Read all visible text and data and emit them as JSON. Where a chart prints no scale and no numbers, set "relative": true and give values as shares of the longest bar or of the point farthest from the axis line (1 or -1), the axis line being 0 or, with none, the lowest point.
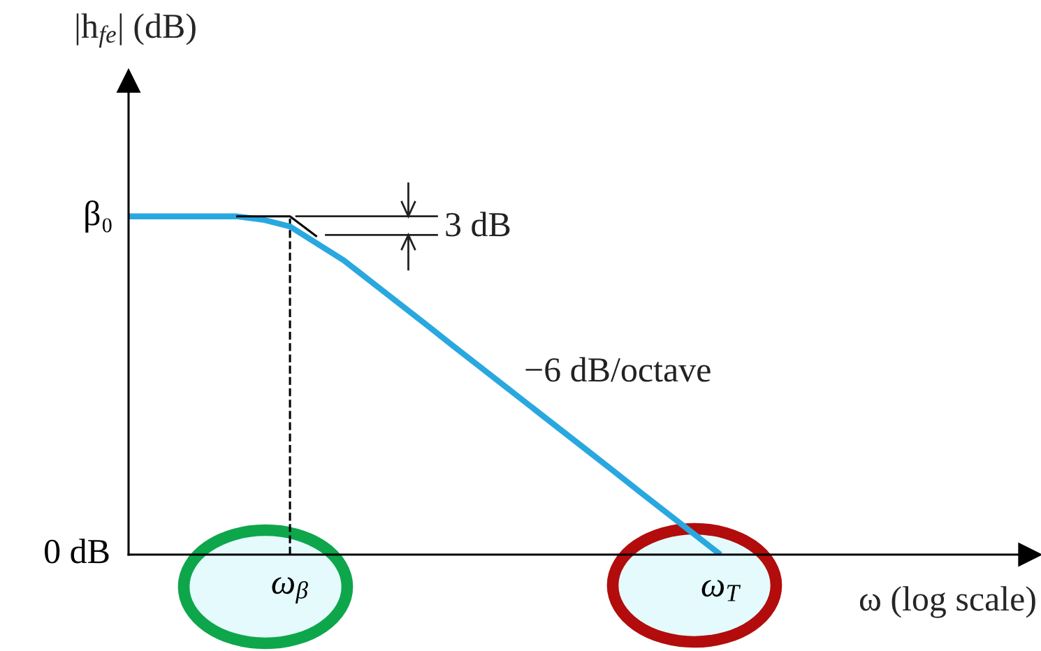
{
  "chart_data": {
    "type": "line",
    "relative": true,
    "xlabel": "ω (log scale)",
    "ylabel": "|h$_{fe}$| (dB)",
    "categories": [
      null,
      null,
      null,
      null,
      null,
      null,
      "ω$_{β}$",
      null,
      null,
      null,
      null,
      null,
      null,
      null,
      null,
      null,
      null,
      null,
      null,
      null,
      null,
      null,
      "ω$_{T}$",
      null,
      null,
      null,
      null,
      null,
      null,
      null,
      null,
      null,
      null,
      null
    ],
    "series": [
      {
        "color": "#29a8e0",
        "values": [
          1,
          1,
          1,
          1,
          1,
          0.99,
          0.97,
          0.92,
          0.87,
          0.808,
          0.746,
          0.684,
          0.621,
          0.559,
          0.497,
          0.435,
          0.373,
          0.311,
          0.249,
          0.186,
          0.124,
          0.062,
          0,
          null,
          null,
          null,
          null,
          null,
          null,
          null,
          null,
          null,
          null,
          null
        ]
      },
      {
        "color": "#000000",
        "values": [
          null,
          null,
          null,
          null,
          1,
          1,
          1,
          0.94,
          null,
          null,
          null,
          null,
          null,
          null,
          null,
          null,
          null,
          null,
          null,
          null,
          null,
          null,
          null,
          null,
          null,
          null,
          null,
          null,
          null,
          null,
          null,
          null,
          null,
          null
        ]
      }
    ],
    "ref_lines": [
      {
        "axis": "x",
        "value": "ω$_{β}$",
        "color": "#000000",
        "line_style": "dashed"
      }
    ],
    "annotations": [
      "3 dB",
      "−6 dB/octave",
      "β₀",
      "0 dB"
    ],
    "grid": false,
    "legend": false,
    "marker": "none",
    "line_style": "solid"
  }
}
